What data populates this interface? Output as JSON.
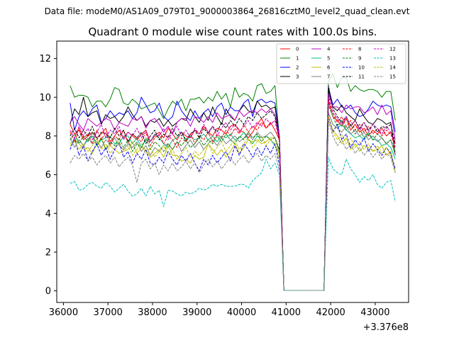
{
  "figure": {
    "suptitle": "Data file: modeM0/AS1A09_079T01_9000003864_26816cztM0_level2_quad_clean.evt"
  },
  "chart_data": {
    "type": "line",
    "title": "Quadrant 0 module wise count rates with 100.0s bins.",
    "xlabel": "",
    "ylabel": "",
    "x_offset_label": "+3.376e8",
    "xlim": [
      35850,
      43750
    ],
    "ylim": [
      -0.6,
      12.9
    ],
    "x_ticks": [
      36000,
      37000,
      38000,
      39000,
      40000,
      41000,
      42000,
      43000
    ],
    "x_tick_labels": [
      "36000",
      "37000",
      "38000",
      "39000",
      "40000",
      "41000",
      "42000",
      "43000"
    ],
    "y_ticks": [
      0,
      2,
      4,
      6,
      8,
      10,
      12
    ],
    "y_tick_labels": [
      "0",
      "2",
      "4",
      "6",
      "8",
      "10",
      "12"
    ],
    "legend_position": "upper-right",
    "series": [
      {
        "name": "0",
        "color": "#ff0000",
        "dash": "solid",
        "seg1": [
          8.6,
          8.1,
          8.3,
          7.8,
          8.0,
          8.2,
          7.9,
          8.1,
          8.4,
          7.7,
          8.0,
          8.3,
          7.9,
          8.2,
          8.0,
          7.8,
          8.1,
          8.3,
          7.7,
          8.0,
          8.2,
          7.9,
          8.4,
          8.1,
          7.8,
          8.2,
          8.0,
          7.9,
          8.3,
          8.1,
          8.5,
          8.2,
          8.0,
          8.4,
          8.3,
          8.1,
          8.5,
          8.6,
          8.3,
          8.2,
          7.9,
          8.2,
          8.6,
          8.9,
          8.4,
          8.7,
          8.3,
          7.8
        ],
        "seg2": [
          9.8,
          9.0,
          8.8,
          8.5,
          8.9,
          8.3,
          8.6,
          8.2,
          8.4,
          8.0,
          8.3,
          8.1,
          8.4,
          8.0,
          8.2,
          7.6
        ]
      },
      {
        "name": "1",
        "color": "#008000",
        "dash": "solid",
        "seg1": [
          10.6,
          10.0,
          10.1,
          10.1,
          10.0,
          9.5,
          9.8,
          9.8,
          9.5,
          9.9,
          10.5,
          10.4,
          9.7,
          9.6,
          9.9,
          9.7,
          9.4,
          9.5,
          9.6,
          9.7,
          9.3,
          8.9,
          9.4,
          9.8,
          9.6,
          9.9,
          9.3,
          9.9,
          9.9,
          10.0,
          9.7,
          10.0,
          9.8,
          10.3,
          9.9,
          10.2,
          9.5,
          10.5,
          10.0,
          10.2,
          10.1,
          9.8,
          10.6,
          10.7,
          10.2,
          10.3,
          10.6,
          7.8
        ],
        "seg2": [
          10.8,
          11.2,
          10.5,
          11.0,
          11.0,
          10.3,
          10.6,
          10.4,
          10.3,
          10.4,
          10.4,
          10.3,
          10.0,
          10.3,
          10.3,
          8.8
        ]
      },
      {
        "name": "2",
        "color": "#0000ff",
        "dash": "solid",
        "seg1": [
          9.7,
          8.3,
          9.0,
          9.3,
          9.0,
          9.4,
          9.6,
          8.7,
          8.9,
          9.3,
          9.0,
          9.2,
          9.1,
          9.3,
          8.9,
          9.2,
          10.0,
          9.6,
          9.2,
          9.3,
          9.7,
          9.0,
          8.8,
          9.0,
          9.8,
          9.3,
          9.0,
          8.8,
          9.3,
          8.9,
          9.2,
          9.4,
          9.0,
          9.5,
          9.7,
          9.1,
          9.5,
          9.3,
          9.3,
          9.7,
          9.9,
          9.0,
          9.8,
          9.9,
          9.7,
          9.8,
          9.7,
          8.0
        ],
        "seg2": [
          10.5,
          9.6,
          9.9,
          9.5,
          9.4,
          9.6,
          9.2,
          9.0,
          9.1,
          9.4,
          9.8,
          9.6,
          9.5,
          9.6,
          9.5,
          8.2
        ]
      },
      {
        "name": "3",
        "color": "#000000",
        "dash": "solid",
        "seg1": [
          8.6,
          9.4,
          9.1,
          10.0,
          9.0,
          9.2,
          9.3,
          8.6,
          9.1,
          8.9,
          9.0,
          8.7,
          9.0,
          9.5,
          9.1,
          8.8,
          9.0,
          8.5,
          8.8,
          8.7,
          8.9,
          8.5,
          8.8,
          8.5,
          8.7,
          8.9,
          8.8,
          9.4,
          9.0,
          8.7,
          9.2,
          8.8,
          9.5,
          9.0,
          8.6,
          9.4,
          9.0,
          8.8,
          9.3,
          9.6,
          9.3,
          9.2,
          9.8,
          9.5,
          9.6,
          9.4,
          9.5,
          7.9
        ],
        "seg2": [
          10.4,
          9.5,
          9.3,
          9.6,
          9.2,
          9.0,
          8.8,
          9.4,
          9.0,
          8.7,
          8.6,
          8.9,
          8.8,
          8.6,
          8.7,
          7.0
        ]
      },
      {
        "name": "4",
        "color": "#bf00bf",
        "dash": "solid",
        "seg1": [
          8.7,
          9.0,
          8.6,
          8.3,
          8.9,
          8.7,
          8.5,
          8.7,
          8.9,
          8.8,
          8.3,
          8.7,
          8.6,
          8.5,
          8.9,
          8.8,
          9.0,
          8.4,
          8.8,
          8.9,
          8.6,
          8.2,
          8.5,
          8.1,
          8.7,
          8.9,
          8.9,
          8.5,
          9.0,
          8.9,
          8.7,
          9.0,
          8.7,
          9.2,
          8.9,
          9.0,
          9.1,
          8.8,
          9.3,
          9.0,
          9.2,
          9.3,
          9.2,
          9.4,
          9.2,
          9.4,
          9.1,
          8.0
        ],
        "seg2": [
          10.2,
          9.5,
          9.5,
          9.2,
          9.6,
          9.4,
          9.5,
          9.5,
          9.2,
          9.3,
          9.5,
          9.1,
          9.6,
          9.1,
          9.3,
          7.8
        ]
      },
      {
        "name": "5",
        "color": "#00bf80",
        "dash": "solid",
        "seg1": [
          7.5,
          7.7,
          7.8,
          7.5,
          7.8,
          8.0,
          7.5,
          7.8,
          7.9,
          8.0,
          7.6,
          7.6,
          8.0,
          8.0,
          7.6,
          7.9,
          7.4,
          7.8,
          7.7,
          8.1,
          7.9,
          7.6,
          7.4,
          7.8,
          7.9,
          8.2,
          7.7,
          8.0,
          7.8,
          7.9,
          8.1,
          7.8,
          8.0,
          7.7,
          8.0,
          7.9,
          8.1,
          7.8,
          7.9,
          8.2,
          7.8,
          7.6,
          8.0,
          7.9,
          8.0,
          7.8,
          7.5,
          7.1
        ],
        "seg2": [
          9.2,
          8.6,
          8.4,
          8.6,
          8.3,
          8.1,
          7.9,
          8.0,
          7.8,
          8.1,
          7.8,
          7.8,
          7.5,
          7.6,
          7.4,
          6.8
        ]
      },
      {
        "name": "6",
        "color": "#bfbf00",
        "dash": "solid",
        "seg1": [
          7.6,
          7.8,
          7.6,
          7.3,
          7.4,
          7.1,
          7.6,
          7.9,
          7.3,
          7.5,
          7.3,
          7.1,
          7.2,
          7.3,
          7.7,
          7.1,
          7.4,
          7.3,
          6.9,
          7.1,
          7.3,
          6.9,
          7.5,
          7.0,
          7.0,
          6.7,
          6.8,
          6.6,
          7.0,
          6.8,
          6.9,
          7.6,
          7.3,
          7.0,
          7.3,
          6.9,
          7.2,
          7.6,
          7.1,
          7.4,
          7.8,
          7.7,
          7.8,
          7.6,
          7.7,
          7.9,
          7.9,
          7.0
        ],
        "seg2": [
          9.0,
          8.3,
          8.0,
          7.6,
          7.9,
          7.3,
          7.6,
          7.2,
          7.5,
          7.4,
          7.2,
          7.3,
          7.5,
          7.0,
          7.2,
          6.2
        ]
      },
      {
        "name": "7",
        "color": "#808080",
        "dash": "solid",
        "seg1": [
          7.9,
          7.4,
          7.8,
          7.5,
          7.9,
          7.6,
          7.7,
          7.4,
          7.8,
          7.6,
          7.9,
          7.5,
          7.3,
          7.6,
          7.4,
          7.7,
          7.2,
          7.5,
          7.0,
          7.4,
          7.2,
          7.5,
          7.6,
          7.3,
          7.7,
          7.2,
          7.5,
          7.8,
          7.4,
          7.7,
          7.3,
          7.6,
          7.8,
          7.5,
          7.9,
          7.6,
          7.8,
          8.0,
          7.7,
          7.9,
          8.1,
          7.8,
          8.2,
          7.9,
          8.0,
          8.2,
          7.9,
          7.2
        ],
        "seg2": [
          9.2,
          8.6,
          8.4,
          8.2,
          8.5,
          8.1,
          8.3,
          8.0,
          8.2,
          7.8,
          8.0,
          7.7,
          7.9,
          7.6,
          7.8,
          7.0
        ]
      },
      {
        "name": "8",
        "color": "#ff0000",
        "dash": "dashed",
        "seg1": [
          8.2,
          7.7,
          8.4,
          7.9,
          8.1,
          7.6,
          8.3,
          7.8,
          8.2,
          7.5,
          8.0,
          7.8,
          8.3,
          7.6,
          8.1,
          7.9,
          7.7,
          8.2,
          7.5,
          7.9,
          8.1,
          7.6,
          8.0,
          7.8,
          7.4,
          7.9,
          7.7,
          8.1,
          7.6,
          8.0,
          7.8,
          8.2,
          7.7,
          8.1,
          7.9,
          8.3,
          8.0,
          8.4,
          8.1,
          8.6,
          8.2,
          8.5,
          8.3,
          8.7,
          8.4,
          8.6,
          8.8,
          7.7
        ],
        "seg2": [
          9.9,
          9.2,
          8.7,
          9.0,
          8.5,
          8.8,
          8.3,
          8.6,
          8.2,
          8.5,
          8.1,
          8.4,
          8.0,
          8.3,
          8.1,
          7.4
        ]
      },
      {
        "name": "9",
        "color": "#008000",
        "dash": "dashed",
        "seg1": [
          7.8,
          8.1,
          7.6,
          8.0,
          7.7,
          8.2,
          7.5,
          7.9,
          7.3,
          7.7,
          7.5,
          7.9,
          7.4,
          7.8,
          7.2,
          7.6,
          7.4,
          7.9,
          7.3,
          7.7,
          7.5,
          7.2,
          7.6,
          7.3,
          7.7,
          7.5,
          7.8,
          7.4,
          7.6,
          7.9,
          7.5,
          7.8,
          7.6,
          8.0,
          7.7,
          8.1,
          7.8,
          7.6,
          8.0,
          7.8,
          8.2,
          7.9,
          8.1,
          7.7,
          8.0,
          7.8,
          7.9,
          7.3
        ],
        "seg2": [
          9.6,
          9.0,
          8.5,
          8.8,
          8.3,
          8.6,
          8.1,
          8.4,
          7.9,
          8.2,
          7.8,
          8.1,
          7.9,
          7.6,
          7.8,
          7.2
        ]
      },
      {
        "name": "10",
        "color": "#0000ff",
        "dash": "dashed",
        "seg1": [
          7.3,
          7.9,
          7.0,
          7.5,
          6.7,
          7.2,
          7.6,
          7.0,
          7.4,
          6.8,
          7.3,
          7.7,
          6.9,
          7.2,
          6.6,
          7.1,
          6.8,
          7.3,
          6.6,
          6.5,
          6.9,
          6.6,
          7.2,
          6.8,
          6.5,
          7.0,
          6.7,
          7.1,
          6.6,
          6.2,
          6.8,
          6.5,
          7.0,
          6.6,
          6.9,
          7.2,
          6.7,
          7.5,
          7.0,
          7.6,
          7.3,
          6.9,
          7.4,
          7.0,
          7.5,
          7.1,
          7.6,
          6.5
        ],
        "seg2": [
          9.0,
          8.2,
          8.6,
          7.8,
          8.1,
          7.4,
          7.8,
          7.5,
          7.9,
          7.2,
          7.6,
          7.3,
          7.0,
          7.4,
          7.1,
          6.3
        ]
      },
      {
        "name": "11",
        "color": "#000000",
        "dash": "dashed",
        "seg1": [
          8.0,
          8.4,
          7.9,
          8.3,
          8.0,
          8.5,
          7.8,
          8.2,
          8.1,
          7.9,
          8.4,
          8.0,
          8.3,
          7.7,
          8.1,
          7.9,
          8.2,
          7.6,
          8.0,
          8.3,
          7.8,
          8.1,
          7.9,
          8.4,
          8.0,
          8.2,
          7.8,
          8.1,
          8.3,
          7.9,
          8.4,
          8.1,
          8.5,
          8.2,
          8.7,
          8.4,
          8.8,
          8.5,
          8.9,
          8.6,
          9.0,
          8.8,
          9.2,
          8.9,
          9.1,
          9.3,
          9.0,
          7.8
        ],
        "seg2": [
          10.6,
          9.4,
          9.0,
          8.7,
          9.0,
          8.5,
          8.8,
          8.4,
          8.7,
          8.3,
          8.6,
          8.2,
          8.5,
          8.4,
          8.6,
          7.6
        ]
      },
      {
        "name": "12",
        "color": "#bf00bf",
        "dash": "dashed",
        "seg1": [
          8.3,
          7.9,
          8.5,
          8.0,
          8.4,
          7.8,
          8.2,
          8.6,
          7.9,
          8.3,
          8.1,
          8.5,
          7.8,
          8.2,
          8.0,
          8.4,
          7.9,
          8.3,
          7.7,
          8.1,
          8.0,
          8.4,
          7.8,
          8.2,
          8.5,
          8.0,
          8.3,
          7.9,
          8.4,
          8.1,
          8.6,
          8.2,
          8.5,
          8.0,
          8.4,
          8.7,
          8.3,
          8.6,
          8.2,
          8.5,
          8.8,
          8.4,
          8.7,
          8.5,
          8.9,
          8.6,
          8.8,
          7.9
        ],
        "seg2": [
          10.1,
          9.2,
          8.9,
          8.6,
          9.0,
          8.5,
          8.8,
          8.3,
          8.7,
          8.2,
          8.6,
          8.4,
          8.1,
          8.5,
          8.2,
          7.5
        ]
      },
      {
        "name": "13",
        "color": "#00bfbf",
        "dash": "dashed",
        "seg1": [
          5.55,
          5.65,
          5.2,
          5.25,
          5.5,
          5.6,
          5.4,
          5.3,
          5.6,
          5.4,
          5.1,
          5.3,
          5.5,
          5.15,
          4.9,
          5.0,
          5.3,
          4.9,
          5.4,
          5.0,
          5.2,
          4.35,
          5.2,
          5.15,
          5.0,
          4.9,
          5.1,
          5.0,
          5.1,
          5.3,
          5.2,
          5.3,
          5.5,
          5.4,
          5.5,
          5.4,
          5.4,
          5.4,
          5.5,
          5.5,
          5.3,
          5.7,
          5.9,
          6.1,
          6.8,
          6.3,
          6.6,
          6.0
        ],
        "seg2": [
          6.9,
          6.3,
          6.1,
          6.0,
          6.8,
          6.3,
          6.0,
          5.6,
          5.9,
          5.7,
          6.0,
          5.5,
          5.3,
          5.6,
          5.7,
          4.6
        ]
      },
      {
        "name": "14",
        "color": "#bfbf00",
        "dash": "dashed",
        "seg1": [
          7.5,
          7.7,
          7.3,
          7.6,
          7.2,
          7.5,
          7.8,
          7.3,
          7.6,
          7.1,
          7.4,
          7.7,
          7.2,
          7.5,
          7.0,
          7.3,
          7.6,
          7.1,
          7.4,
          6.9,
          7.2,
          7.5,
          7.0,
          7.3,
          6.8,
          7.1,
          7.4,
          6.9,
          7.2,
          7.0,
          7.3,
          7.6,
          7.1,
          7.4,
          7.7,
          7.2,
          7.5,
          7.8,
          7.3,
          7.6,
          7.9,
          7.4,
          7.7,
          8.0,
          7.5,
          7.8,
          7.6,
          6.8
        ],
        "seg2": [
          9.0,
          8.2,
          7.8,
          8.1,
          7.6,
          7.9,
          7.4,
          7.7,
          7.3,
          7.6,
          7.2,
          7.5,
          7.1,
          7.4,
          7.0,
          6.1
        ]
      },
      {
        "name": "15",
        "color": "#808080",
        "dash": "dashed",
        "seg1": [
          6.6,
          7.0,
          6.8,
          7.1,
          6.7,
          6.9,
          6.5,
          6.8,
          7.0,
          6.6,
          6.9,
          6.4,
          6.7,
          6.9,
          6.5,
          5.6,
          6.6,
          6.8,
          6.3,
          6.6,
          6.0,
          6.5,
          6.2,
          6.6,
          6.2,
          6.4,
          6.7,
          6.3,
          6.6,
          6.1,
          6.5,
          6.8,
          6.4,
          6.7,
          6.3,
          6.6,
          6.9,
          6.5,
          6.8,
          7.0,
          6.6,
          6.9,
          7.1,
          6.7,
          7.0,
          6.8,
          7.1,
          6.2
        ],
        "seg2": [
          8.8,
          8.0,
          7.5,
          7.8,
          7.3,
          7.6,
          7.1,
          7.4,
          7.0,
          7.3,
          6.9,
          7.2,
          6.8,
          7.1,
          6.9,
          6.1
        ]
      }
    ]
  }
}
